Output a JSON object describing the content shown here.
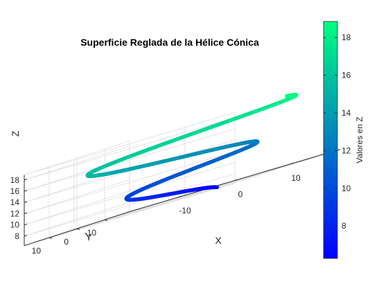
{
  "figure": {
    "background": "#ffffff",
    "axis_color": "#262626",
    "grid_color": "#dcdcdc"
  },
  "chart_data": {
    "type": "line",
    "subtype": "3d-helix",
    "title": "Superficie Reglada de la Hélice Cónica",
    "xlabel": "X",
    "ylabel": "Y",
    "zlabel": "Z",
    "xlim": [
      -19,
      19
    ],
    "ylim": [
      -19,
      19
    ],
    "zlim": [
      6.3,
      18.9
    ],
    "x_ticks": [
      -10,
      0,
      10
    ],
    "x_tick_labels": [
      "-10",
      "0",
      "10"
    ],
    "y_ticks": [
      -10,
      0,
      10
    ],
    "y_tick_labels": [
      "-10",
      "0",
      "10"
    ],
    "z_ticks": [
      8,
      10,
      12,
      14,
      16,
      18
    ],
    "z_tick_labels": [
      "8",
      "10",
      "12",
      "14",
      "16",
      "18"
    ],
    "grid": true,
    "view": "3d-isometric",
    "curve": {
      "x": "t*cos(t)",
      "y": "t*sin(t)",
      "z": "t",
      "t_range": [
        6.28,
        18.85
      ],
      "color_by": "z",
      "line_width": "thick"
    },
    "colorbar": {
      "label": "Valores en Z",
      "ticks": [
        8,
        10,
        12,
        14,
        16,
        18
      ],
      "tick_labels": [
        "8",
        "10",
        "12",
        "14",
        "16",
        "18"
      ],
      "range": [
        6.28,
        18.85
      ],
      "colormap": "winter",
      "colormap_stops": [
        "#0000ff",
        "#00ff80"
      ],
      "location": "right"
    }
  }
}
